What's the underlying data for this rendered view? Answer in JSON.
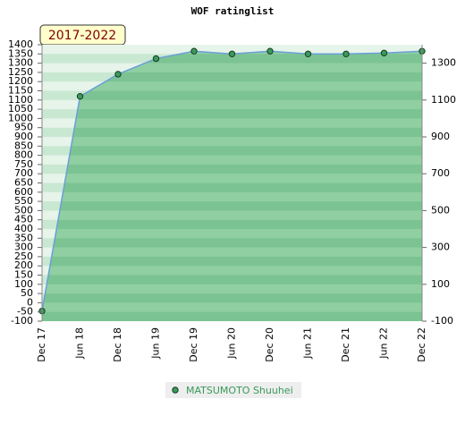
{
  "chart_data": {
    "type": "area",
    "title": "WOF ratinglist",
    "badge": "2017-2022",
    "categories": [
      "Dec 17",
      "Jun 18",
      "Dec 18",
      "Jun 19",
      "Dec 19",
      "Jun 20",
      "Dec 20",
      "Jun 21",
      "Dec 21",
      "Jun 22",
      "Dec 22"
    ],
    "series": [
      {
        "name": "MATSUMOTO Shuuhei",
        "color": "#3a9a5a",
        "line_color": "#6a9fd8",
        "values": [
          -45,
          1120,
          1240,
          1325,
          1365,
          1350,
          1365,
          1350,
          1350,
          1355,
          1365
        ]
      }
    ],
    "ylim": [
      -100,
      1400
    ],
    "yticks": [
      -100,
      -50,
      0,
      50,
      100,
      150,
      200,
      250,
      300,
      350,
      400,
      450,
      500,
      550,
      600,
      650,
      700,
      750,
      800,
      850,
      900,
      950,
      1000,
      1050,
      1100,
      1150,
      1200,
      1250,
      1300,
      1350,
      1400
    ],
    "y2lim": [
      -100,
      1400
    ],
    "y2ticks": [
      -100,
      100,
      300,
      500,
      700,
      900,
      1100,
      1300
    ],
    "legend": "bottom"
  }
}
